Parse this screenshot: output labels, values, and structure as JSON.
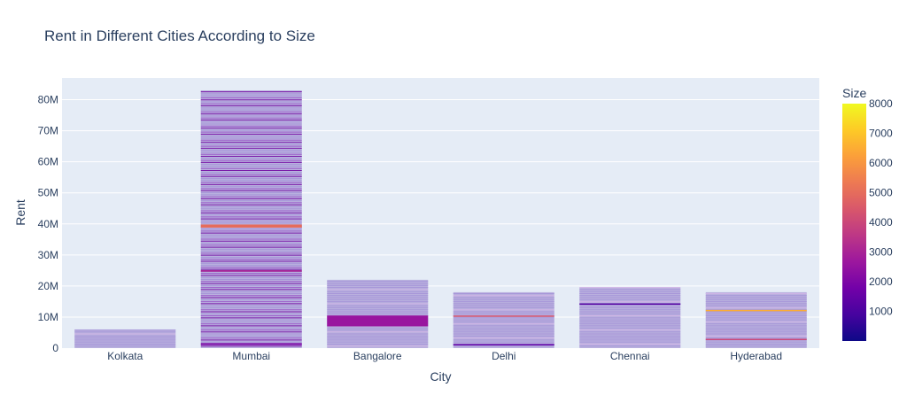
{
  "chart_data": {
    "type": "bar",
    "barmode": "stacked",
    "title": "Rent in Different Cities According to Size",
    "xlabel": "City",
    "ylabel": "Rent",
    "categories": [
      "Kolkata",
      "Mumbai",
      "Bangalore",
      "Delhi",
      "Chennai",
      "Hyderabad"
    ],
    "values": [
      6,
      83,
      22,
      18,
      19.5,
      18
    ],
    "value_unit": "M",
    "ylim": [
      0,
      87
    ],
    "yticks": [
      0,
      10,
      20,
      30,
      40,
      50,
      60,
      70,
      80
    ],
    "ytick_labels": [
      "0",
      "10M",
      "20M",
      "30M",
      "40M",
      "50M",
      "60M",
      "70M",
      "80M"
    ],
    "grid": true,
    "highlight_segments": [
      {
        "category": "Mumbai",
        "from": 38.8,
        "to": 39.8,
        "size": 5000
      },
      {
        "category": "Mumbai",
        "from": 24.6,
        "to": 25.1,
        "size": 3000
      },
      {
        "category": "Mumbai",
        "from": 1.0,
        "to": 1.6,
        "size": 2000
      },
      {
        "category": "Bangalore",
        "from": 7.0,
        "to": 10.5,
        "size": 2600
      },
      {
        "category": "Delhi",
        "from": 10.2,
        "to": 10.5,
        "size": 4400
      },
      {
        "category": "Delhi",
        "from": 1.0,
        "to": 1.3,
        "size": 1500
      },
      {
        "category": "Chennai",
        "from": 14.0,
        "to": 14.4,
        "size": 1200
      },
      {
        "category": "Hyderabad",
        "from": 12.0,
        "to": 12.3,
        "size": 6500
      },
      {
        "category": "Hyderabad",
        "from": 2.8,
        "to": 3.0,
        "size": 4000
      }
    ],
    "colorbar": {
      "title": "Size",
      "min": 0,
      "max": 8000,
      "ticks": [
        1000,
        2000,
        3000,
        4000,
        5000,
        6000,
        7000,
        8000
      ],
      "colorscale": [
        "#0d0887",
        "#46039f",
        "#7201a8",
        "#9c179e",
        "#bd3786",
        "#d8576b",
        "#ed7953",
        "#fb9f3a",
        "#fdca26",
        "#f0f921"
      ]
    }
  }
}
